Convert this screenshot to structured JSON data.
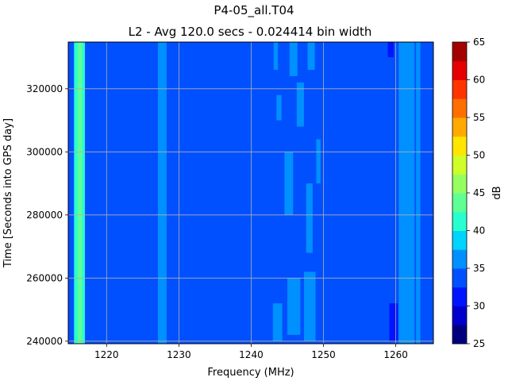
{
  "chart_data": {
    "type": "heatmap",
    "title": "P4-05_all.T04",
    "subtitle": "L2 - Avg 120.0 secs - 0.024414 bin width",
    "xlabel": "Frequency (MHz)",
    "ylabel": "Time [Seconds into GPS day]",
    "xlim": [
      1214.7,
      1265.2
    ],
    "ylim": [
      239200,
      334800
    ],
    "x_ticks": [
      1220,
      1230,
      1240,
      1250,
      1260
    ],
    "y_ticks": [
      240000,
      260000,
      280000,
      300000,
      320000
    ],
    "grid": true,
    "colorbar": {
      "label": "dB",
      "min": 25,
      "max": 65,
      "ticks": [
        25,
        30,
        35,
        40,
        45,
        50,
        55,
        60,
        65
      ],
      "levels": [
        25,
        27.5,
        30,
        32.5,
        35,
        37.5,
        40,
        42.5,
        45,
        47.5,
        50,
        52.5,
        55,
        57.5,
        60,
        62.5,
        65
      ],
      "colors": [
        "#00007f",
        "#0000cc",
        "#0014ff",
        "#0050ff",
        "#0090ff",
        "#00d4ff",
        "#29ffce",
        "#60ff96",
        "#96ff60",
        "#ceff29",
        "#ffe500",
        "#ffaa00",
        "#ff6f00",
        "#ff3300",
        "#e60000",
        "#a30000"
      ]
    },
    "background_db": 33,
    "features": [
      {
        "kind": "band",
        "x_from": 1215.5,
        "x_to": 1217.0,
        "db": 40,
        "core_x": [
          1216.0,
          1216.6
        ],
        "core_db": 43
      },
      {
        "kind": "band",
        "x_from": 1227.1,
        "x_to": 1228.3,
        "db": 35
      },
      {
        "kind": "band",
        "x_from": 1260.4,
        "x_to": 1262.6,
        "db": 35
      },
      {
        "kind": "band",
        "x_from": 1262.8,
        "x_to": 1263.4,
        "db": 36
      },
      {
        "kind": "patch",
        "x_from": 1243.0,
        "x_to": 1244.3,
        "t_from": 240000,
        "t_to": 252000,
        "db": 35
      },
      {
        "kind": "patch",
        "x_from": 1245.0,
        "x_to": 1246.8,
        "t_from": 242000,
        "t_to": 260000,
        "db": 35
      },
      {
        "kind": "patch",
        "x_from": 1247.3,
        "x_to": 1248.9,
        "t_from": 240000,
        "t_to": 262000,
        "db": 35
      },
      {
        "kind": "patch",
        "x_from": 1247.6,
        "x_to": 1248.5,
        "t_from": 268000,
        "t_to": 290000,
        "db": 35
      },
      {
        "kind": "patch",
        "x_from": 1244.6,
        "x_to": 1245.8,
        "t_from": 280000,
        "t_to": 300000,
        "db": 35
      },
      {
        "kind": "patch",
        "x_from": 1249.0,
        "x_to": 1249.6,
        "t_from": 290000,
        "t_to": 304000,
        "db": 35
      },
      {
        "kind": "patch",
        "x_from": 1246.3,
        "x_to": 1247.3,
        "t_from": 308000,
        "t_to": 322000,
        "db": 35
      },
      {
        "kind": "patch",
        "x_from": 1243.5,
        "x_to": 1244.2,
        "t_from": 310000,
        "t_to": 318000,
        "db": 35
      },
      {
        "kind": "patch",
        "x_from": 1245.3,
        "x_to": 1246.4,
        "t_from": 324000,
        "t_to": 334800,
        "db": 35
      },
      {
        "kind": "patch",
        "x_from": 1247.8,
        "x_to": 1248.8,
        "t_from": 326000,
        "t_to": 334800,
        "db": 35
      },
      {
        "kind": "patch",
        "x_from": 1243.1,
        "x_to": 1243.7,
        "t_from": 326000,
        "t_to": 334800,
        "db": 35
      },
      {
        "kind": "patch",
        "x_from": 1259.1,
        "x_to": 1260.3,
        "t_from": 240000,
        "t_to": 252000,
        "db": 32
      },
      {
        "kind": "patch",
        "x_from": 1258.9,
        "x_to": 1259.7,
        "t_from": 330000,
        "t_to": 334800,
        "db": 32
      }
    ]
  }
}
